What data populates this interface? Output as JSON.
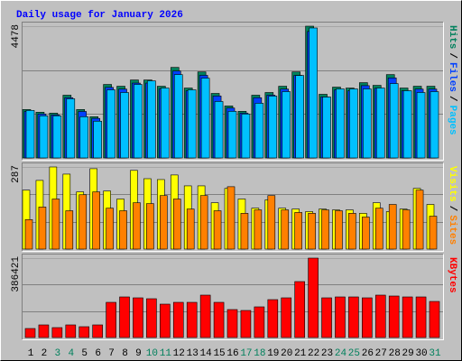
{
  "chart_data": [
    {
      "type": "bar",
      "title": "Daily usage for January 2026",
      "title_color": "#0000ff",
      "ylim": [
        0,
        4478
      ],
      "yticks": [
        4478
      ],
      "legend_separator": "/",
      "series": [
        {
          "name": "Hits",
          "color": "#00805c",
          "values": [
            1645,
            1554,
            1523,
            2132,
            1645,
            1401,
            2498,
            2437,
            2650,
            2650,
            2437,
            3077,
            2376,
            2924,
            2193,
            1767,
            1584,
            2132,
            2224,
            2437,
            2924,
            4478,
            2163,
            2407,
            2376,
            2559,
            2467,
            2833,
            2376,
            2437,
            2437
          ]
        },
        {
          "name": "Files",
          "color": "#0040ff",
          "values": [
            1579,
            1492,
            1462,
            2047,
            1579,
            1345,
            2398,
            2340,
            2544,
            2544,
            2340,
            2954,
            2281,
            2807,
            2105,
            1696,
            1521,
            2047,
            2135,
            2340,
            2807,
            4299,
            2076,
            2311,
            2281,
            2457,
            2368,
            2720,
            2281,
            2340,
            2340
          ]
        },
        {
          "name": "Pages",
          "color": "#00c0ff",
          "values": [
            1615,
            1432,
            1432,
            2011,
            1401,
            1249,
            2315,
            2224,
            2498,
            2620,
            2376,
            2833,
            2315,
            2711,
            1919,
            1584,
            1493,
            1858,
            2102,
            2254,
            2802,
            4417,
            2071,
            2346,
            2346,
            2346,
            2376,
            2528,
            2285,
            2224,
            2254
          ]
        }
      ]
    },
    {
      "type": "bar",
      "ylim": [
        0,
        287
      ],
      "yticks": [
        287
      ],
      "legend_separator": "/",
      "series": [
        {
          "name": "Visits",
          "color": "#ffff00",
          "values": [
            206,
            240,
            287,
            262,
            200,
            281,
            203,
            175,
            275,
            246,
            243,
            259,
            221,
            221,
            162,
            212,
            175,
            143,
            172,
            143,
            140,
            131,
            140,
            137,
            137,
            125,
            162,
            131,
            140,
            212,
            156
          ]
        },
        {
          "name": "Sites",
          "color": "#ff8000",
          "values": [
            103,
            147,
            175,
            134,
            190,
            200,
            143,
            134,
            162,
            159,
            187,
            175,
            140,
            187,
            134,
            218,
            125,
            137,
            187,
            137,
            128,
            125,
            137,
            134,
            125,
            112,
            143,
            156,
            137,
            206,
            115
          ]
        }
      ]
    },
    {
      "type": "bar",
      "ylim": [
        0,
        386421
      ],
      "yticks": [
        386421
      ],
      "categories": [
        "1",
        "2",
        "3",
        "4",
        "5",
        "6",
        "7",
        "8",
        "9",
        "10",
        "11",
        "12",
        "13",
        "14",
        "15",
        "16",
        "17",
        "18",
        "19",
        "20",
        "21",
        "22",
        "23",
        "24",
        "25",
        "26",
        "27",
        "28",
        "29",
        "30",
        "31"
      ],
      "category_colors": [
        "#000000",
        "#000000",
        "#00805c",
        "#00805c",
        "#000000",
        "#000000",
        "#000000",
        "#000000",
        "#000000",
        "#00805c",
        "#00805c",
        "#000000",
        "#000000",
        "#000000",
        "#000000",
        "#000000",
        "#00805c",
        "#00805c",
        "#000000",
        "#000000",
        "#000000",
        "#000000",
        "#000000",
        "#00805c",
        "#00805c",
        "#000000",
        "#000000",
        "#000000",
        "#000000",
        "#000000",
        "#00805c"
      ],
      "series": [
        {
          "name": "KBytes",
          "color": "#ff0000",
          "values": [
            43912,
            61476,
            48303,
            61476,
            52694,
            61476,
            171255,
            197602,
            193211,
            188820,
            162472,
            171255,
            171255,
            206385,
            171255,
            136126,
            131735,
            149299,
            184429,
            193211,
            272251,
            386421,
            193211,
            197602,
            197602,
            193211,
            206385,
            201994,
            197602,
            197602,
            175646
          ]
        }
      ]
    }
  ]
}
